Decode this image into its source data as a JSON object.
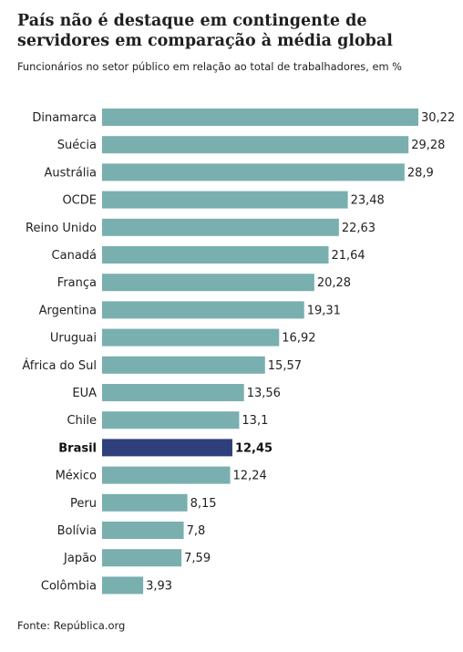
{
  "title": "País não é destaque em contingente de servidores em comparação à média global",
  "subtitle": "Funcionários no setor público em relação ao total de trabalhadores, em %",
  "source": "Fonte: República.org",
  "colors": {
    "bar": "#7aafaf",
    "highlight": "#2e3f7c"
  },
  "chart_data": {
    "type": "bar",
    "orientation": "horizontal",
    "categories": [
      "Dinamarca",
      "Suécia",
      "Austrália",
      "OCDE",
      "Reino Unido",
      "Canadá",
      "França",
      "Argentina",
      "Uruguai",
      "África do Sul",
      "EUA",
      "Chile",
      "Brasil",
      "México",
      "Peru",
      "Bolívia",
      "Japão",
      "Colômbia"
    ],
    "values": [
      30.22,
      29.28,
      28.9,
      23.48,
      22.63,
      21.64,
      20.28,
      19.31,
      16.92,
      15.57,
      13.56,
      13.1,
      12.45,
      12.24,
      8.15,
      7.8,
      7.59,
      3.93
    ],
    "value_labels": [
      "30,22",
      "29,28",
      "28,9",
      "23,48",
      "22,63",
      "21,64",
      "20,28",
      "19,31",
      "16,92",
      "15,57",
      "13,56",
      "13,1",
      "12,45",
      "12,24",
      "8,15",
      "7,8",
      "7,59",
      "3,93"
    ],
    "highlight": "Brasil",
    "xlim": [
      0,
      30.22
    ],
    "grid": false,
    "legend": "none"
  }
}
